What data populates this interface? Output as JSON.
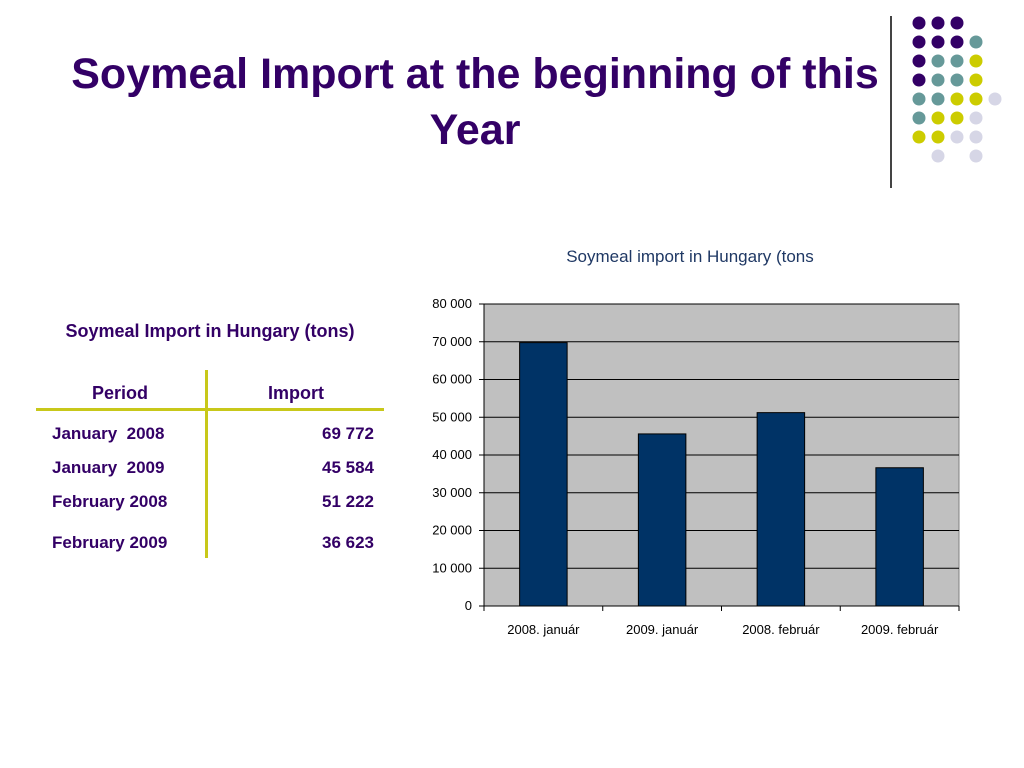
{
  "slide": {
    "title": "Soymeal Import at the beginning of this Year"
  },
  "decor": {
    "dot_colors": [
      "#330066",
      "#669999",
      "#cccc00",
      "#d6d6e6"
    ]
  },
  "table": {
    "caption": "Soymeal Import in Hungary (tons)",
    "headers": [
      "Period",
      "Import"
    ],
    "rows": [
      {
        "period": "January  2008",
        "import": "69 772"
      },
      {
        "period": "January  2009",
        "import": "45 584"
      },
      {
        "period": "February 2008",
        "import": "51 222"
      },
      {
        "period": "February 2009",
        "import": "36 623"
      }
    ]
  },
  "chart_data": {
    "type": "bar",
    "title": "Soymeal import in Hungary (tons",
    "categories": [
      "2008. január",
      "2009. január",
      "2008. február",
      "2009. február"
    ],
    "values": [
      69772,
      45584,
      51222,
      36623
    ],
    "ylim": [
      0,
      80000
    ],
    "yticks": [
      0,
      10000,
      20000,
      30000,
      40000,
      50000,
      60000,
      70000,
      80000
    ],
    "ytick_labels": [
      "0",
      "10 000",
      "20 000",
      "30 000",
      "40 000",
      "50 000",
      "60 000",
      "70 000",
      "80 000"
    ],
    "grid": true,
    "bar_color": "#003366",
    "plot_background": "#c0c0c0",
    "xlabel": "",
    "ylabel": ""
  }
}
